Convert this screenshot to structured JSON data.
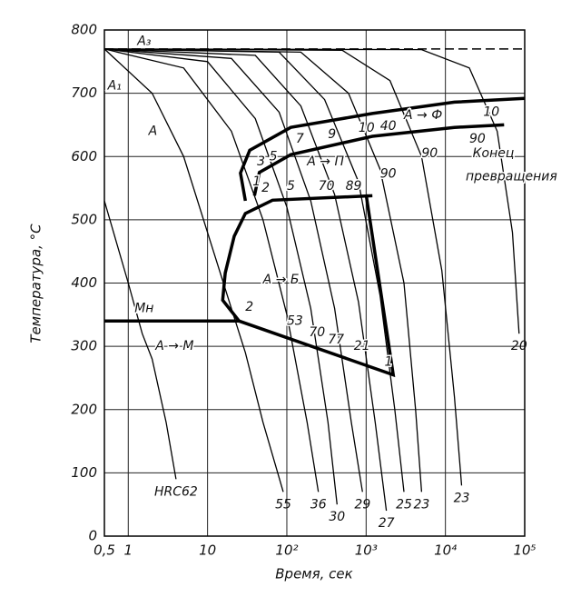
{
  "chart_data": {
    "type": "line",
    "xlabel": "Время, сек",
    "ylabel": "Температура, °C",
    "xscale": "log",
    "grid": true,
    "xlim": [
      0.5,
      100000
    ],
    "ylim": [
      0,
      800
    ],
    "xticks": [
      {
        "value": 0.5,
        "label": "0,5"
      },
      1,
      10,
      {
        "value": 100,
        "label": "10²"
      },
      {
        "value": 1000,
        "label": "10³"
      },
      {
        "value": 10000,
        "label": "10⁴"
      },
      {
        "value": 100000,
        "label": "10⁵"
      }
    ],
    "yticks": [
      0,
      100,
      200,
      300,
      400,
      500,
      600,
      700,
      800
    ],
    "hline": {
      "y": 770,
      "dashed": true
    },
    "series": [
      {
        "name": "HRC62",
        "x": [
          0.5,
          1,
          1.5,
          2,
          3,
          4
        ],
        "y": [
          530,
          400,
          320,
          280,
          180,
          90
        ]
      },
      {
        "name": "55",
        "x": [
          0.5,
          2,
          5,
          10,
          20,
          30,
          50,
          90
        ],
        "y": [
          770,
          700,
          600,
          480,
          360,
          290,
          180,
          70
        ]
      },
      {
        "name": "36",
        "x": [
          0.5,
          5,
          20,
          50,
          100,
          180,
          250
        ],
        "y": [
          770,
          740,
          640,
          500,
          350,
          180,
          70
        ]
      },
      {
        "name": "30",
        "x": [
          0.5,
          10,
          40,
          100,
          200,
          330,
          430
        ],
        "y": [
          770,
          750,
          660,
          520,
          360,
          180,
          50
        ]
      },
      {
        "name": "29",
        "x": [
          0.5,
          20,
          80,
          200,
          400,
          650,
          900
        ],
        "y": [
          770,
          755,
          670,
          530,
          360,
          180,
          70
        ]
      },
      {
        "name": "27",
        "x": [
          0.5,
          40,
          150,
          400,
          800,
          1300,
          1800
        ],
        "y": [
          770,
          760,
          680,
          540,
          370,
          180,
          40
        ]
      },
      {
        "name": "25",
        "x": [
          0.5,
          80,
          300,
          800,
          1500,
          2300,
          3000
        ],
        "y": [
          770,
          765,
          690,
          560,
          380,
          200,
          70
        ]
      },
      {
        "name": "23",
        "x": [
          0.5,
          150,
          600,
          1500,
          3000,
          4200,
          5000
        ],
        "y": [
          770,
          765,
          700,
          580,
          400,
          200,
          70
        ]
      },
      {
        "name": "23",
        "x": [
          0.5,
          500,
          2000,
          5000,
          9000,
          13000,
          16000
        ],
        "y": [
          770,
          768,
          720,
          600,
          420,
          220,
          80
        ]
      },
      {
        "name": "20",
        "x": [
          0.5,
          5000,
          20000,
          45000,
          70000,
          85000
        ],
        "y": [
          770,
          769,
          740,
          640,
          480,
          320
        ]
      },
      {
        "bold": true,
        "x": [
          1200,
          66,
          30,
          21.7,
          16.7,
          15.5,
          25
        ],
        "y": [
          538,
          531,
          510,
          474,
          416,
          373,
          340
        ]
      },
      {
        "bold": true,
        "x": [
          30,
          26,
          34,
          112,
          1200,
          13000,
          100000
        ],
        "y": [
          530,
          574,
          610,
          646,
          668,
          686,
          692
        ]
      },
      {
        "bold": true,
        "x": [
          39,
          45,
          112,
          1200,
          13000,
          55000
        ],
        "y": [
          538,
          575,
          603,
          632,
          646,
          650
        ]
      },
      {
        "bold": true,
        "x": [
          0.5,
          25,
          2200,
          1000
        ],
        "y": [
          340,
          340,
          255,
          540
        ]
      }
    ],
    "annotations": [
      {
        "text": "A₃",
        "x": 1.3,
        "y": 782
      },
      {
        "text": "A₁",
        "x": 0.55,
        "y": 712
      },
      {
        "text": "A",
        "x": 1.8,
        "y": 640
      },
      {
        "text": "A → Ф",
        "x": 3000,
        "y": 665
      },
      {
        "text": "A → П",
        "x": 180,
        "y": 592
      },
      {
        "text": "A → Б",
        "x": 50,
        "y": 405
      },
      {
        "text": "A → M",
        "x": 2.2,
        "y": 300
      },
      {
        "text": "Mн",
        "x": 1.2,
        "y": 360
      },
      {
        "text": "Конец",
        "x": 22000,
        "y": 605
      },
      {
        "text": "превращения",
        "x": 18000,
        "y": 568
      },
      {
        "text": "1",
        "x": 37,
        "y": 560
      },
      {
        "text": "3",
        "x": 42,
        "y": 592
      },
      {
        "text": "5",
        "x": 60,
        "y": 600
      },
      {
        "text": "7",
        "x": 130,
        "y": 628
      },
      {
        "text": "9",
        "x": 330,
        "y": 635
      },
      {
        "text": "10",
        "x": 800,
        "y": 645
      },
      {
        "text": "40",
        "x": 1500,
        "y": 648
      },
      {
        "text": "10",
        "x": 30000,
        "y": 670
      },
      {
        "text": "2",
        "x": 48,
        "y": 550
      },
      {
        "text": "5",
        "x": 100,
        "y": 553
      },
      {
        "text": "70",
        "x": 250,
        "y": 553
      },
      {
        "text": "89",
        "x": 550,
        "y": 553
      },
      {
        "text": "90",
        "x": 1500,
        "y": 572
      },
      {
        "text": "90",
        "x": 5000,
        "y": 605
      },
      {
        "text": "90",
        "x": 20000,
        "y": 628
      },
      {
        "text": "2",
        "x": 30,
        "y": 362
      },
      {
        "text": "53",
        "x": 100,
        "y": 340
      },
      {
        "text": "70",
        "x": 190,
        "y": 322
      },
      {
        "text": "77",
        "x": 330,
        "y": 310
      },
      {
        "text": "21",
        "x": 700,
        "y": 300
      },
      {
        "text": "1",
        "x": 1700,
        "y": 275
      }
    ]
  }
}
